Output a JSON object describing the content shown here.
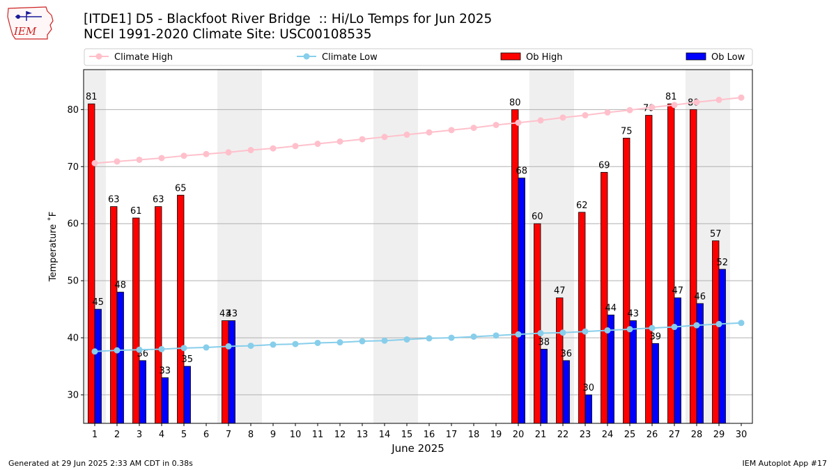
{
  "header": {
    "title_line1": "[ITDE1] D5 - Blackfoot River Bridge  :: Hi/Lo Temps for Jun 2025",
    "title_line2": "NCEI 1991-2020 Climate Site: USC00108535",
    "logo_text": "IEM"
  },
  "footer": {
    "generated": "Generated at 29 Jun 2025 2:33 AM CDT in 0.38s",
    "app": "IEM Autoplot App #17"
  },
  "chart_data": {
    "type": "bar",
    "title": "[ITDE1] D5 - Blackfoot River Bridge  :: Hi/Lo Temps for Jun 2025",
    "xlabel": "June 2025",
    "ylabel": "Temperature ˚F",
    "ylim": [
      25,
      87
    ],
    "yticks": [
      30,
      40,
      50,
      60,
      70,
      80
    ],
    "grid": "horizontal",
    "legend_position": "top",
    "categories": [
      "1",
      "2",
      "3",
      "4",
      "5",
      "6",
      "7",
      "8",
      "9",
      "10",
      "11",
      "12",
      "13",
      "14",
      "15",
      "16",
      "17",
      "18",
      "19",
      "20",
      "21",
      "22",
      "23",
      "24",
      "25",
      "26",
      "27",
      "28",
      "29",
      "30"
    ],
    "shaded_day_ranges": [
      [
        1,
        1
      ],
      [
        7,
        8
      ],
      [
        14,
        15
      ],
      [
        21,
        22
      ],
      [
        28,
        29
      ]
    ],
    "series": [
      {
        "name": "Ob High",
        "type": "bar",
        "color": "#ff0000",
        "values": [
          81,
          63,
          61,
          63,
          65,
          null,
          43,
          null,
          null,
          null,
          null,
          null,
          null,
          null,
          null,
          null,
          null,
          null,
          null,
          80,
          60,
          47,
          62,
          69,
          75,
          79,
          81,
          80,
          57,
          null
        ]
      },
      {
        "name": "Ob Low",
        "type": "bar",
        "color": "#0000ff",
        "values": [
          45,
          48,
          36,
          33,
          35,
          null,
          43,
          null,
          null,
          null,
          null,
          null,
          null,
          null,
          null,
          null,
          null,
          null,
          null,
          68,
          38,
          36,
          30,
          44,
          43,
          39,
          47,
          46,
          52,
          null
        ]
      },
      {
        "name": "Climate High",
        "type": "line",
        "color": "#ffc0cb",
        "values": [
          70.6,
          70.9,
          71.2,
          71.5,
          71.9,
          72.2,
          72.5,
          72.9,
          73.2,
          73.6,
          74.0,
          74.4,
          74.8,
          75.2,
          75.6,
          76.0,
          76.4,
          76.8,
          77.3,
          77.7,
          78.1,
          78.6,
          79.0,
          79.5,
          79.9,
          80.4,
          80.8,
          81.3,
          81.7,
          82.1
        ]
      },
      {
        "name": "Climate Low",
        "type": "line",
        "color": "#87ceeb",
        "values": [
          37.6,
          37.8,
          37.9,
          38.0,
          38.2,
          38.3,
          38.5,
          38.6,
          38.8,
          38.9,
          39.1,
          39.2,
          39.4,
          39.5,
          39.7,
          39.9,
          40.0,
          40.2,
          40.4,
          40.6,
          40.8,
          40.9,
          41.1,
          41.3,
          41.5,
          41.7,
          41.9,
          42.2,
          42.4,
          42.6
        ]
      }
    ]
  }
}
